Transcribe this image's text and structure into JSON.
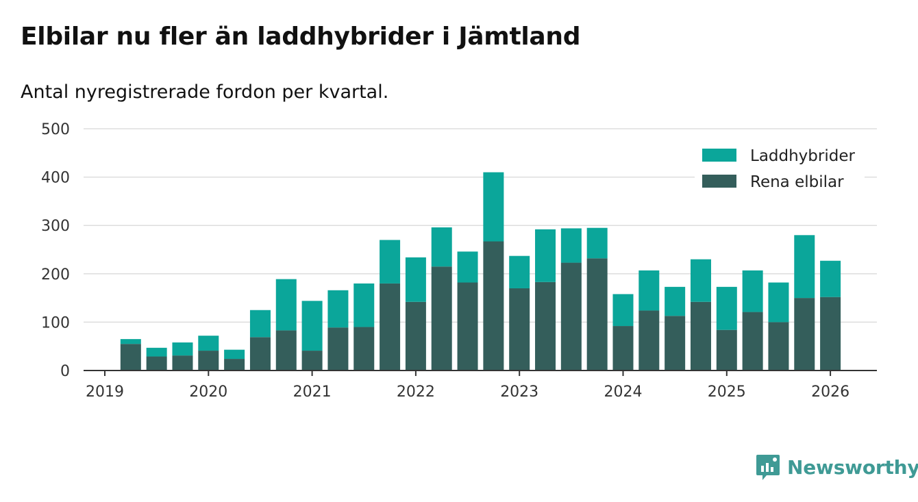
{
  "title": "Elbilar nu fler än laddhybrider i Jämtland",
  "subtitle": "Antal nyregistrerade fordon per kvartal.",
  "brand": {
    "name": "Newsworthy",
    "color": "#3f9a95"
  },
  "colors": {
    "laddhybrider": "#0ba69a",
    "rena_elbilar": "#345e5b",
    "grid": "#dddddd",
    "axis": "#333333"
  },
  "chart_data": {
    "type": "bar",
    "stacked": true,
    "title": "Elbilar nu fler än laddhybrider i Jämtland",
    "subtitle": "Antal nyregistrerade fordon per kvartal.",
    "xlabel": "",
    "ylabel": "",
    "ylim": [
      0,
      500
    ],
    "yticks": [
      0,
      100,
      200,
      300,
      400,
      500
    ],
    "year_ticks": [
      "2019",
      "2020",
      "2021",
      "2022",
      "2023",
      "2024",
      "2025",
      "2026"
    ],
    "grid": true,
    "legend_position": "top-right",
    "categories": [
      "2019Q2",
      "2019Q3",
      "2019Q4",
      "2020Q1",
      "2020Q2",
      "2020Q3",
      "2020Q4",
      "2021Q1",
      "2021Q2",
      "2021Q3",
      "2021Q4",
      "2022Q1",
      "2022Q2",
      "2022Q3",
      "2022Q4",
      "2023Q1",
      "2023Q2",
      "2023Q3",
      "2023Q4",
      "2024Q1",
      "2024Q2",
      "2024Q3",
      "2024Q4",
      "2025Q1",
      "2025Q2",
      "2025Q3",
      "2025Q4",
      "2026Q1"
    ],
    "series": [
      {
        "name": "Rena elbilar",
        "values": [
          55,
          29,
          31,
          41,
          24,
          69,
          83,
          41,
          89,
          90,
          180,
          142,
          215,
          182,
          267,
          170,
          183,
          223,
          232,
          92,
          124,
          113,
          142,
          84,
          121,
          100,
          150,
          152
        ]
      },
      {
        "name": "Laddhybrider",
        "values": [
          10,
          18,
          27,
          31,
          19,
          56,
          106,
          103,
          77,
          90,
          90,
          92,
          81,
          64,
          143,
          67,
          109,
          71,
          63,
          66,
          83,
          60,
          88,
          89,
          86,
          82,
          130,
          75
        ]
      }
    ],
    "legend": [
      "Laddhybrider",
      "Rena elbilar"
    ]
  }
}
